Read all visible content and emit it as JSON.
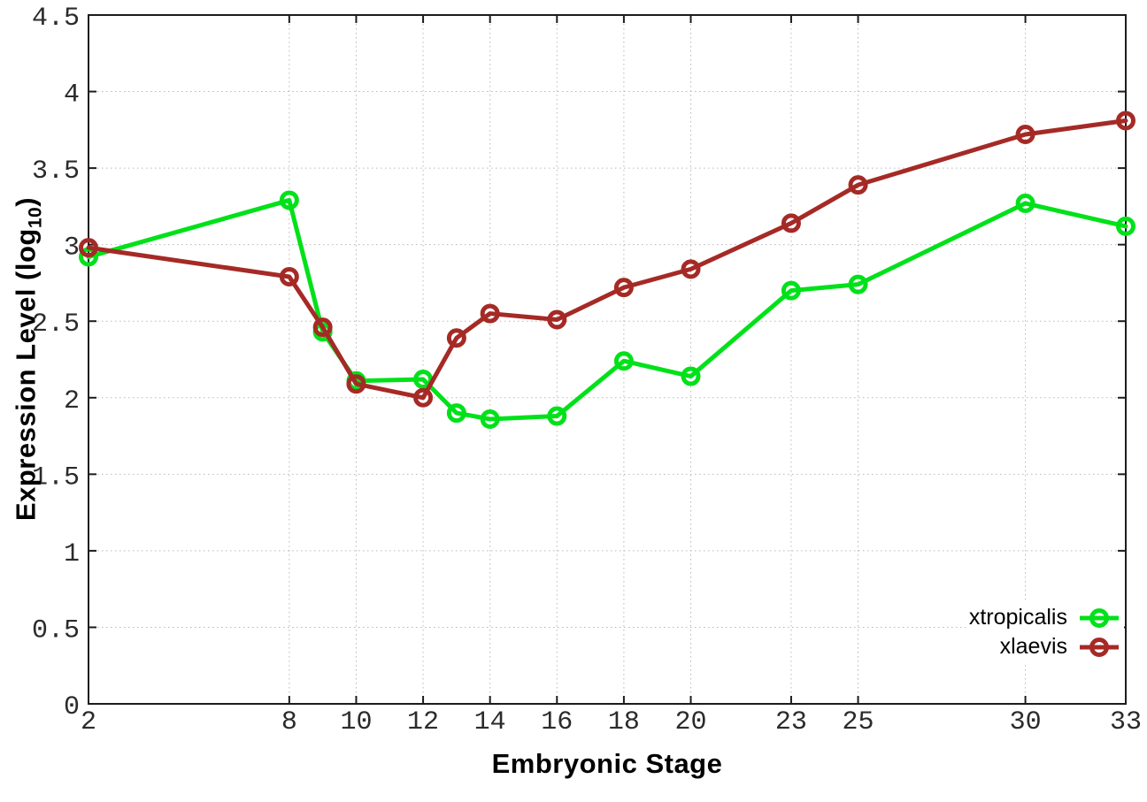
{
  "chart_data": {
    "type": "line",
    "title": "",
    "xlabel": "Embryonic Stage",
    "ylabel": {
      "pre": "Expression Level (log",
      "sub": "10",
      "post": ")"
    },
    "x": [
      2,
      8,
      9,
      10,
      12,
      13,
      14,
      16,
      18,
      20,
      23,
      25,
      30,
      33
    ],
    "series": [
      {
        "name": "xtropicalis",
        "color": "#00e11a",
        "marker": "open-circle",
        "values": [
          2.92,
          3.29,
          2.43,
          2.11,
          2.12,
          1.9,
          1.86,
          1.88,
          2.24,
          2.14,
          2.7,
          2.74,
          3.27,
          3.12
        ]
      },
      {
        "name": "xlaevis",
        "color": "#a52a26",
        "marker": "open-circle",
        "values": [
          2.98,
          2.79,
          2.46,
          2.09,
          2.0,
          2.39,
          2.55,
          2.51,
          2.72,
          2.84,
          3.14,
          3.39,
          3.72,
          3.81
        ]
      }
    ],
    "xlim": [
      2,
      33
    ],
    "ylim": [
      0,
      4.5
    ],
    "x_ticks": [
      2,
      8,
      10,
      12,
      14,
      16,
      18,
      20,
      23,
      25,
      30,
      33
    ],
    "y_ticks": [
      0,
      0.5,
      1,
      1.5,
      2,
      2.5,
      3,
      3.5,
      4,
      4.5
    ],
    "grid": true,
    "grid_style": "dotted",
    "legend_position": "inside-bottom-right",
    "legend_border": false
  },
  "style": {
    "background": "#ffffff",
    "grid_color": "#b8b8b8",
    "border_color": "#1c1c1c",
    "tick_label_color": "#2b2b2b",
    "line_width": 5,
    "marker_radius": 8.5,
    "marker_stroke": 5
  }
}
